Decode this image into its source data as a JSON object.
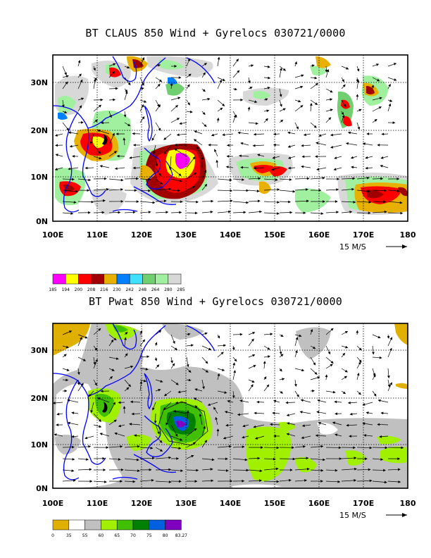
{
  "panels": [
    {
      "title": "BT CLAUS 850 Wind + Gyrelocs 030721/0000",
      "lon_labels": [
        "100E",
        "110E",
        "120E",
        "130E",
        "140E",
        "150E",
        "160E",
        "170E",
        "180"
      ],
      "lat_labels": [
        "0N",
        "10N",
        "20N",
        "30N"
      ],
      "vector_ref": "15 M/S",
      "colorbar": {
        "labels": [
          "185",
          "194",
          "200",
          "208",
          "216",
          "230",
          "242",
          "248",
          "264",
          "280",
          "285"
        ],
        "colors": [
          "#ff00ff",
          "#ffff00",
          "#ff0000",
          "#a00000",
          "#e8b000",
          "#0080ff",
          "#40e0ff",
          "#70d070",
          "#a0f0a0",
          "#d8d8d8"
        ]
      }
    },
    {
      "title": "BT Pwat 850 Wind + Gyrelocs 030721/0000",
      "lon_labels": [
        "100E",
        "110E",
        "120E",
        "130E",
        "140E",
        "150E",
        "160E",
        "170E",
        "180"
      ],
      "lat_labels": [
        "0N",
        "10N",
        "20N",
        "30N"
      ],
      "vector_ref": "15 M/S",
      "colorbar": {
        "labels": [
          "0",
          "35",
          "55",
          "60",
          "65",
          "70",
          "75",
          "80",
          "83.27"
        ],
        "colors": [
          "#e0b000",
          "#ffffff",
          "#c0c0c0",
          "#a0f000",
          "#40c000",
          "#008000",
          "#0060e0",
          "#8000c0"
        ]
      }
    }
  ],
  "colors": {
    "coastline": "#0000ff",
    "frame": "#000000",
    "grid": "#000000"
  }
}
